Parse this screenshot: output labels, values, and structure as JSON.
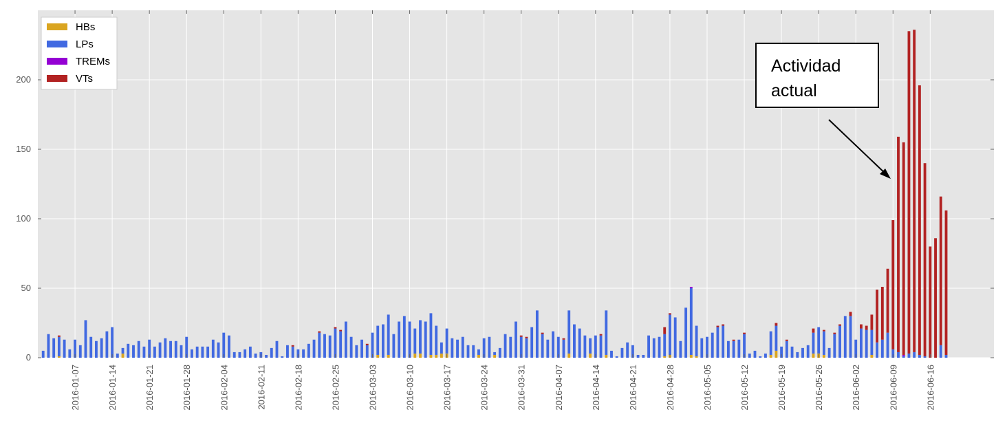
{
  "chart_data": {
    "type": "stacked_bar",
    "x": [
      "2016-01-01",
      "2016-01-02",
      "2016-01-03",
      "2016-01-04",
      "2016-01-05",
      "2016-01-06",
      "2016-01-07",
      "2016-01-08",
      "2016-01-09",
      "2016-01-10",
      "2016-01-11",
      "2016-01-12",
      "2016-01-13",
      "2016-01-14",
      "2016-01-15",
      "2016-01-16",
      "2016-01-17",
      "2016-01-18",
      "2016-01-19",
      "2016-01-20",
      "2016-01-21",
      "2016-01-22",
      "2016-01-23",
      "2016-01-24",
      "2016-01-25",
      "2016-01-26",
      "2016-01-27",
      "2016-01-28",
      "2016-01-29",
      "2016-01-30",
      "2016-01-31",
      "2016-02-01",
      "2016-02-02",
      "2016-02-03",
      "2016-02-04",
      "2016-02-05",
      "2016-02-06",
      "2016-02-07",
      "2016-02-08",
      "2016-02-09",
      "2016-02-10",
      "2016-02-11",
      "2016-02-12",
      "2016-02-13",
      "2016-02-14",
      "2016-02-15",
      "2016-02-16",
      "2016-02-17",
      "2016-02-18",
      "2016-02-19",
      "2016-02-20",
      "2016-02-21",
      "2016-02-22",
      "2016-02-23",
      "2016-02-24",
      "2016-02-25",
      "2016-02-26",
      "2016-02-27",
      "2016-02-28",
      "2016-02-29",
      "2016-03-01",
      "2016-03-02",
      "2016-03-03",
      "2016-03-04",
      "2016-03-05",
      "2016-03-06",
      "2016-03-07",
      "2016-03-08",
      "2016-03-09",
      "2016-03-10",
      "2016-03-11",
      "2016-03-12",
      "2016-03-13",
      "2016-03-14",
      "2016-03-15",
      "2016-03-16",
      "2016-03-17",
      "2016-03-18",
      "2016-03-19",
      "2016-03-20",
      "2016-03-21",
      "2016-03-22",
      "2016-03-23",
      "2016-03-24",
      "2016-03-25",
      "2016-03-26",
      "2016-03-27",
      "2016-03-28",
      "2016-03-29",
      "2016-03-30",
      "2016-03-31",
      "2016-04-01",
      "2016-04-02",
      "2016-04-03",
      "2016-04-04",
      "2016-04-05",
      "2016-04-06",
      "2016-04-07",
      "2016-04-08",
      "2016-04-09",
      "2016-04-10",
      "2016-04-11",
      "2016-04-12",
      "2016-04-13",
      "2016-04-14",
      "2016-04-15",
      "2016-04-16",
      "2016-04-17",
      "2016-04-18",
      "2016-04-19",
      "2016-04-20",
      "2016-04-21",
      "2016-04-22",
      "2016-04-23",
      "2016-04-24",
      "2016-04-25",
      "2016-04-26",
      "2016-04-27",
      "2016-04-28",
      "2016-04-29",
      "2016-04-30",
      "2016-05-01",
      "2016-05-02",
      "2016-05-03",
      "2016-05-04",
      "2016-05-05",
      "2016-05-06",
      "2016-05-07",
      "2016-05-08",
      "2016-05-09",
      "2016-05-10",
      "2016-05-11",
      "2016-05-12",
      "2016-05-13",
      "2016-05-14",
      "2016-05-15",
      "2016-05-16",
      "2016-05-17",
      "2016-05-18",
      "2016-05-19",
      "2016-05-20",
      "2016-05-21",
      "2016-05-22",
      "2016-05-23",
      "2016-05-24",
      "2016-05-25",
      "2016-05-26",
      "2016-05-27",
      "2016-05-28",
      "2016-05-29",
      "2016-05-30",
      "2016-05-31",
      "2016-06-01",
      "2016-06-02",
      "2016-06-03",
      "2016-06-04",
      "2016-06-05",
      "2016-06-06",
      "2016-06-07",
      "2016-06-08",
      "2016-06-09",
      "2016-06-10",
      "2016-06-11",
      "2016-06-12",
      "2016-06-13",
      "2016-06-14",
      "2016-06-15",
      "2016-06-16",
      "2016-06-17",
      "2016-06-18",
      "2016-06-19"
    ],
    "series": [
      {
        "name": "HBs",
        "color": "#daa520",
        "values": [
          0,
          0,
          0,
          1,
          0,
          0,
          0,
          0,
          0,
          0,
          0,
          0,
          0,
          0,
          0,
          3,
          0,
          0,
          0,
          0,
          0,
          0,
          0,
          0,
          0,
          0,
          0,
          0,
          0,
          0,
          0,
          0,
          0,
          0,
          0,
          0,
          0,
          0,
          0,
          0,
          0,
          0,
          0,
          0,
          0,
          0,
          0,
          0,
          0,
          0,
          0,
          0,
          0,
          0,
          0,
          0,
          0,
          0,
          0,
          0,
          0,
          0,
          0,
          2,
          0,
          2,
          0,
          0,
          0,
          0,
          3,
          3,
          0,
          2,
          2,
          3,
          3,
          0,
          0,
          0,
          0,
          0,
          2,
          0,
          0,
          2,
          0,
          0,
          0,
          0,
          0,
          0,
          0,
          0,
          0,
          0,
          0,
          0,
          0,
          3,
          0,
          0,
          0,
          3,
          0,
          0,
          2,
          0,
          0,
          0,
          0,
          0,
          0,
          0,
          0,
          0,
          0,
          1,
          2,
          0,
          0,
          0,
          2,
          1,
          0,
          0,
          0,
          0,
          0,
          0,
          0,
          0,
          0,
          0,
          0,
          0,
          0,
          2,
          5,
          0,
          0,
          0,
          0,
          0,
          0,
          3,
          3,
          2,
          0,
          0,
          0,
          0,
          0,
          0,
          0,
          0,
          2,
          0,
          0,
          0,
          0,
          0,
          0,
          0,
          0,
          0,
          0,
          0,
          0,
          0,
          0
        ]
      },
      {
        "name": "LPs",
        "color": "#4169e1",
        "values": [
          5,
          17,
          14,
          14,
          13,
          6,
          13,
          9,
          27,
          15,
          12,
          14,
          19,
          22,
          3,
          4,
          10,
          9,
          12,
          8,
          13,
          8,
          11,
          14,
          12,
          12,
          9,
          15,
          6,
          8,
          8,
          8,
          13,
          11,
          18,
          16,
          4,
          4,
          6,
          8,
          3,
          4,
          2,
          7,
          12,
          1,
          9,
          8,
          6,
          6,
          10,
          13,
          18,
          17,
          16,
          21,
          19,
          26,
          15,
          9,
          13,
          9,
          18,
          21,
          24,
          29,
          17,
          26,
          30,
          26,
          18,
          24,
          26,
          30,
          21,
          8,
          18,
          14,
          13,
          15,
          9,
          9,
          4,
          14,
          15,
          2,
          7,
          17,
          15,
          26,
          15,
          14,
          22,
          34,
          17,
          13,
          19,
          15,
          13,
          31,
          24,
          21,
          16,
          11,
          16,
          16,
          32,
          5,
          1,
          7,
          11,
          9,
          2,
          2,
          16,
          14,
          15,
          16,
          29,
          29,
          12,
          36,
          48,
          22,
          14,
          15,
          18,
          22,
          23,
          12,
          12,
          13,
          17,
          3,
          5,
          1,
          3,
          17,
          18,
          8,
          12,
          8,
          4,
          7,
          9,
          15,
          19,
          17,
          7,
          17,
          23,
          30,
          30,
          13,
          21,
          20,
          18,
          11,
          13,
          18,
          6,
          4,
          1,
          3,
          4,
          2,
          1,
          0,
          0,
          9,
          2
        ]
      },
      {
        "name": "TREMs",
        "color": "#9400d3",
        "values": [
          0,
          0,
          0,
          0,
          0,
          0,
          0,
          0,
          0,
          0,
          0,
          0,
          0,
          0,
          0,
          0,
          0,
          0,
          0,
          0,
          0,
          0,
          0,
          0,
          0,
          0,
          0,
          0,
          0,
          0,
          0,
          0,
          0,
          0,
          0,
          0,
          0,
          0,
          0,
          0,
          0,
          0,
          0,
          0,
          0,
          0,
          0,
          0,
          0,
          0,
          0,
          0,
          0,
          0,
          0,
          0,
          0,
          0,
          0,
          0,
          0,
          0,
          0,
          0,
          0,
          0,
          0,
          0,
          0,
          0,
          0,
          0,
          0,
          0,
          0,
          0,
          0,
          0,
          0,
          0,
          0,
          0,
          0,
          0,
          0,
          0,
          0,
          0,
          0,
          0,
          0,
          0,
          0,
          0,
          0,
          0,
          0,
          0,
          0,
          0,
          0,
          0,
          0,
          0,
          0,
          0,
          0,
          0,
          0,
          0,
          0,
          0,
          0,
          0,
          0,
          0,
          0,
          0,
          0,
          0,
          0,
          0,
          1,
          0,
          0,
          0,
          0,
          0,
          0,
          0,
          0,
          0,
          0,
          0,
          0,
          0,
          0,
          0,
          0,
          0,
          0,
          0,
          0,
          0,
          0,
          0,
          0,
          0,
          0,
          0,
          0,
          0,
          0,
          0,
          0,
          0,
          0,
          0,
          0,
          0,
          0,
          0,
          1,
          0,
          0,
          0,
          0,
          0,
          0,
          0,
          0
        ]
      },
      {
        "name": "VTs",
        "color": "#b22222",
        "values": [
          0,
          0,
          0,
          1,
          0,
          0,
          0,
          0,
          0,
          0,
          0,
          0,
          0,
          0,
          0,
          0,
          0,
          0,
          0,
          0,
          0,
          0,
          0,
          0,
          0,
          0,
          0,
          0,
          0,
          0,
          0,
          0,
          0,
          0,
          0,
          0,
          0,
          0,
          0,
          0,
          0,
          0,
          0,
          0,
          0,
          0,
          0,
          1,
          0,
          0,
          0,
          0,
          1,
          0,
          0,
          1,
          1,
          0,
          0,
          0,
          0,
          1,
          0,
          0,
          0,
          0,
          0,
          0,
          0,
          0,
          0,
          0,
          0,
          0,
          0,
          0,
          0,
          0,
          0,
          0,
          0,
          0,
          0,
          0,
          0,
          0,
          0,
          0,
          0,
          0,
          1,
          1,
          0,
          0,
          1,
          0,
          0,
          0,
          1,
          0,
          0,
          0,
          0,
          0,
          0,
          1,
          0,
          0,
          0,
          0,
          0,
          0,
          0,
          0,
          0,
          0,
          0,
          5,
          1,
          0,
          0,
          0,
          0,
          0,
          0,
          0,
          0,
          1,
          1,
          0,
          1,
          0,
          1,
          0,
          0,
          0,
          0,
          0,
          2,
          0,
          1,
          0,
          0,
          0,
          0,
          3,
          0,
          1,
          0,
          1,
          1,
          0,
          3,
          0,
          3,
          3,
          11,
          38,
          38,
          46,
          93,
          155,
          153,
          232,
          232,
          194,
          139,
          80,
          86,
          107,
          104
        ]
      }
    ],
    "xlim": [
      "2015-12-31",
      "2016-06-28"
    ],
    "xticks": [
      "2016-01-07",
      "2016-01-14",
      "2016-01-21",
      "2016-01-28",
      "2016-02-04",
      "2016-02-11",
      "2016-02-18",
      "2016-02-25",
      "2016-03-03",
      "2016-03-10",
      "2016-03-17",
      "2016-03-24",
      "2016-03-31",
      "2016-04-07",
      "2016-04-14",
      "2016-04-21",
      "2016-04-28",
      "2016-05-05",
      "2016-05-12",
      "2016-05-19",
      "2016-05-26",
      "2016-06-02",
      "2016-06-09",
      "2016-06-16"
    ],
    "ylim": [
      0,
      250
    ],
    "yticks": [
      0,
      50,
      100,
      150,
      200
    ],
    "grid": true,
    "legend": "upper-left",
    "annotation": "Actividad actual"
  }
}
